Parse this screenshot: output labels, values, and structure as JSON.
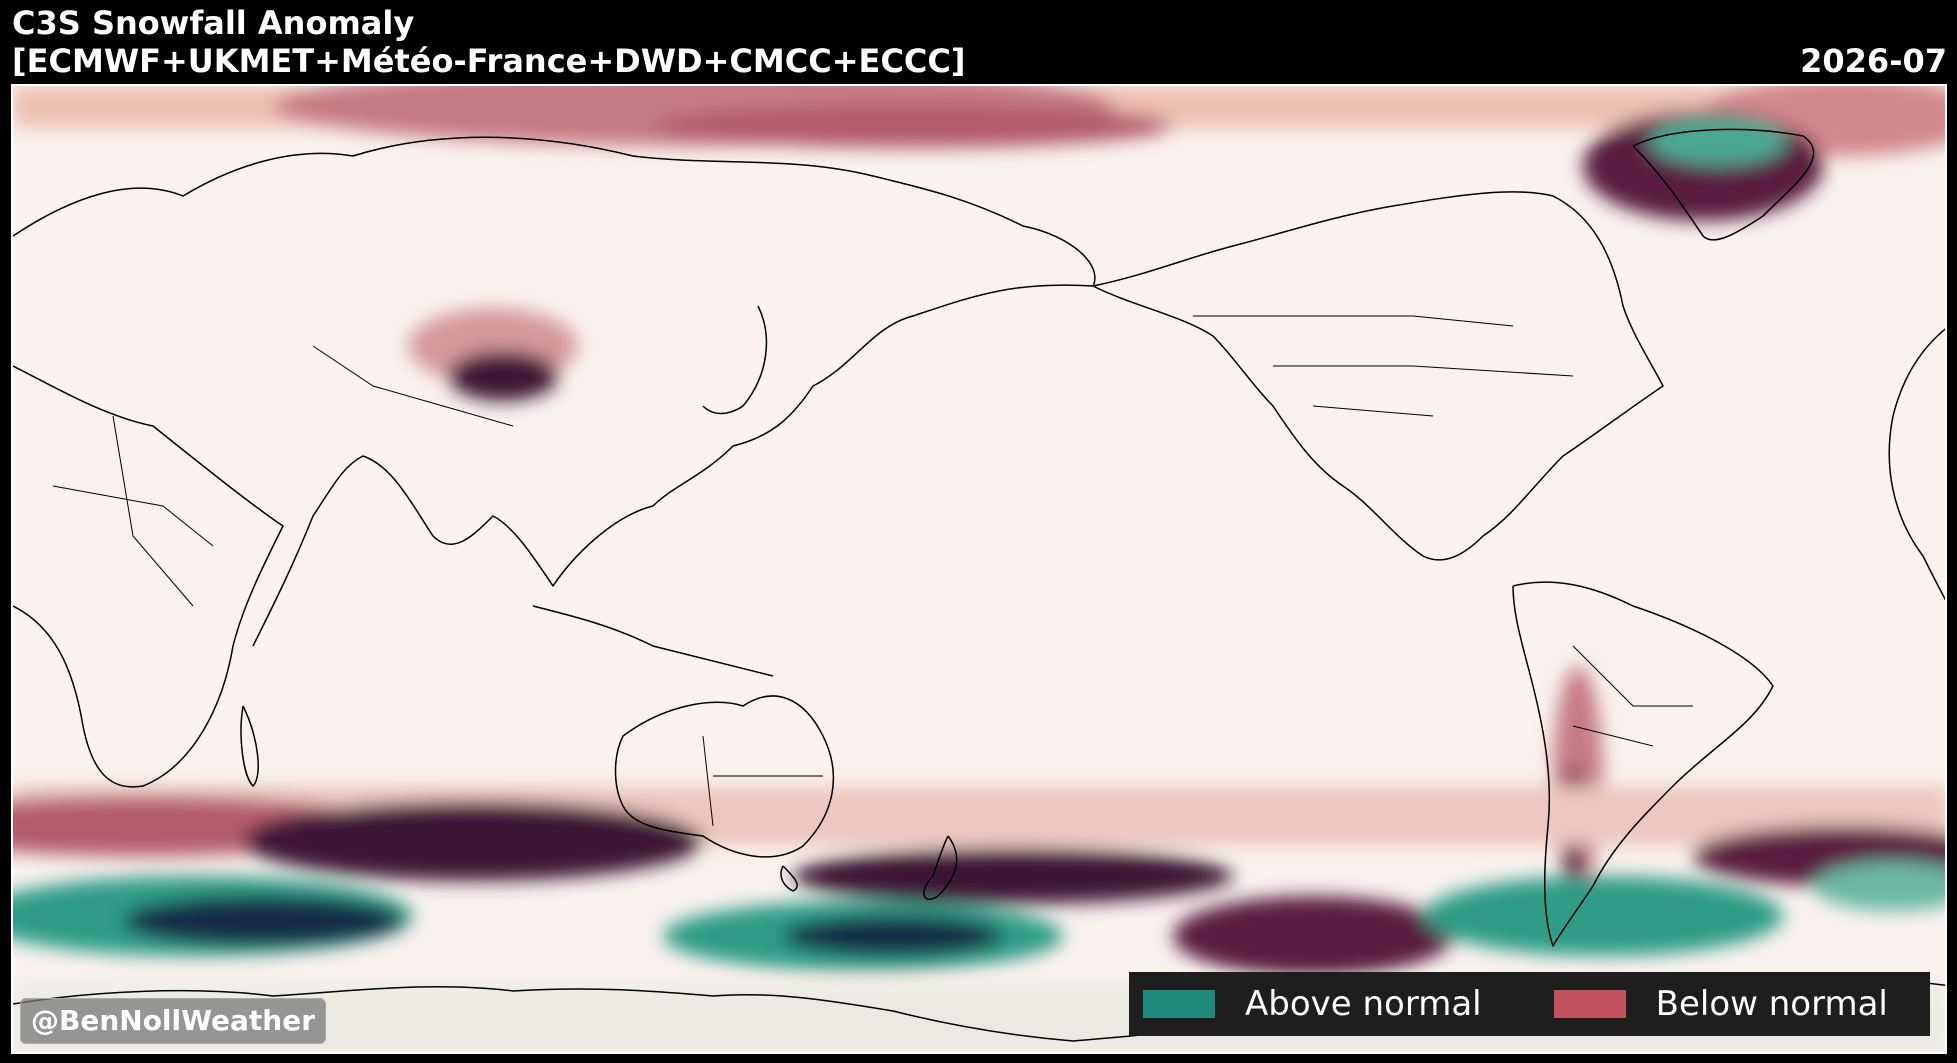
{
  "header": {
    "title": "C3S Snowfall Anomaly",
    "subtitle": "[ECMWF+UKMET+Météo-France+DWD+CMCC+ECCC]",
    "date": "2026-07"
  },
  "credit": "@BenNollWeather",
  "legend": {
    "items": [
      {
        "label": "Above normal",
        "color": "#1e8a7c"
      },
      {
        "label": "Below normal",
        "color": "#c4525e"
      }
    ]
  },
  "colors": {
    "background": "#f9f2ef",
    "below_light": "#eec0b2",
    "below_mid": "#b45b6a",
    "below_dark": "#3c1234",
    "above_light": "#bfe3d6",
    "above_mid": "#2f9c87",
    "above_dark": "#142a45"
  }
}
